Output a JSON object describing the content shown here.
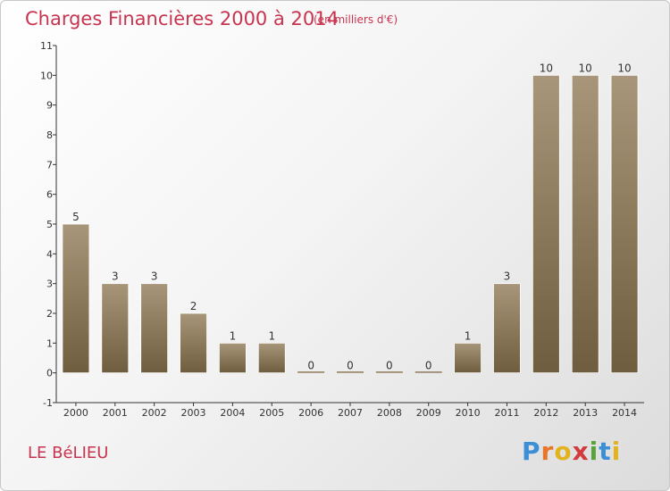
{
  "header": {
    "title": "Charges Financières 2000 à 2014",
    "subtitle": "(en milliers d'€)"
  },
  "footer": {
    "town": "LE BéLIEU",
    "logo_letters": [
      "P",
      "r",
      "o",
      "x",
      "i",
      "t",
      "i"
    ],
    "logo_colors": [
      "#3a8fd6",
      "#e8762a",
      "#e2b21f",
      "#d23b3b",
      "#5aa33b",
      "#3a8fd6",
      "#e2b21f"
    ]
  },
  "chart_data": {
    "type": "bar",
    "categories": [
      "2000",
      "2001",
      "2002",
      "2003",
      "2004",
      "2005",
      "2006",
      "2007",
      "2008",
      "2009",
      "2010",
      "2011",
      "2012",
      "2013",
      "2014"
    ],
    "values": [
      5,
      3,
      3,
      2,
      1,
      1,
      0,
      0,
      0,
      0,
      1,
      3,
      10,
      10,
      10
    ],
    "value_labels": [
      "5",
      "3",
      "3",
      "2",
      "1",
      "1",
      "0",
      "0",
      "0",
      "0",
      "1",
      "3",
      "10",
      "10",
      "10"
    ],
    "y_ticks": [
      "-1",
      "0",
      "1",
      "2",
      "3",
      "4",
      "5",
      "6",
      "7",
      "8",
      "9",
      "10",
      "11"
    ],
    "ylim": [
      -1,
      11
    ],
    "grid": false,
    "bar_color": "#8f7a5a"
  }
}
